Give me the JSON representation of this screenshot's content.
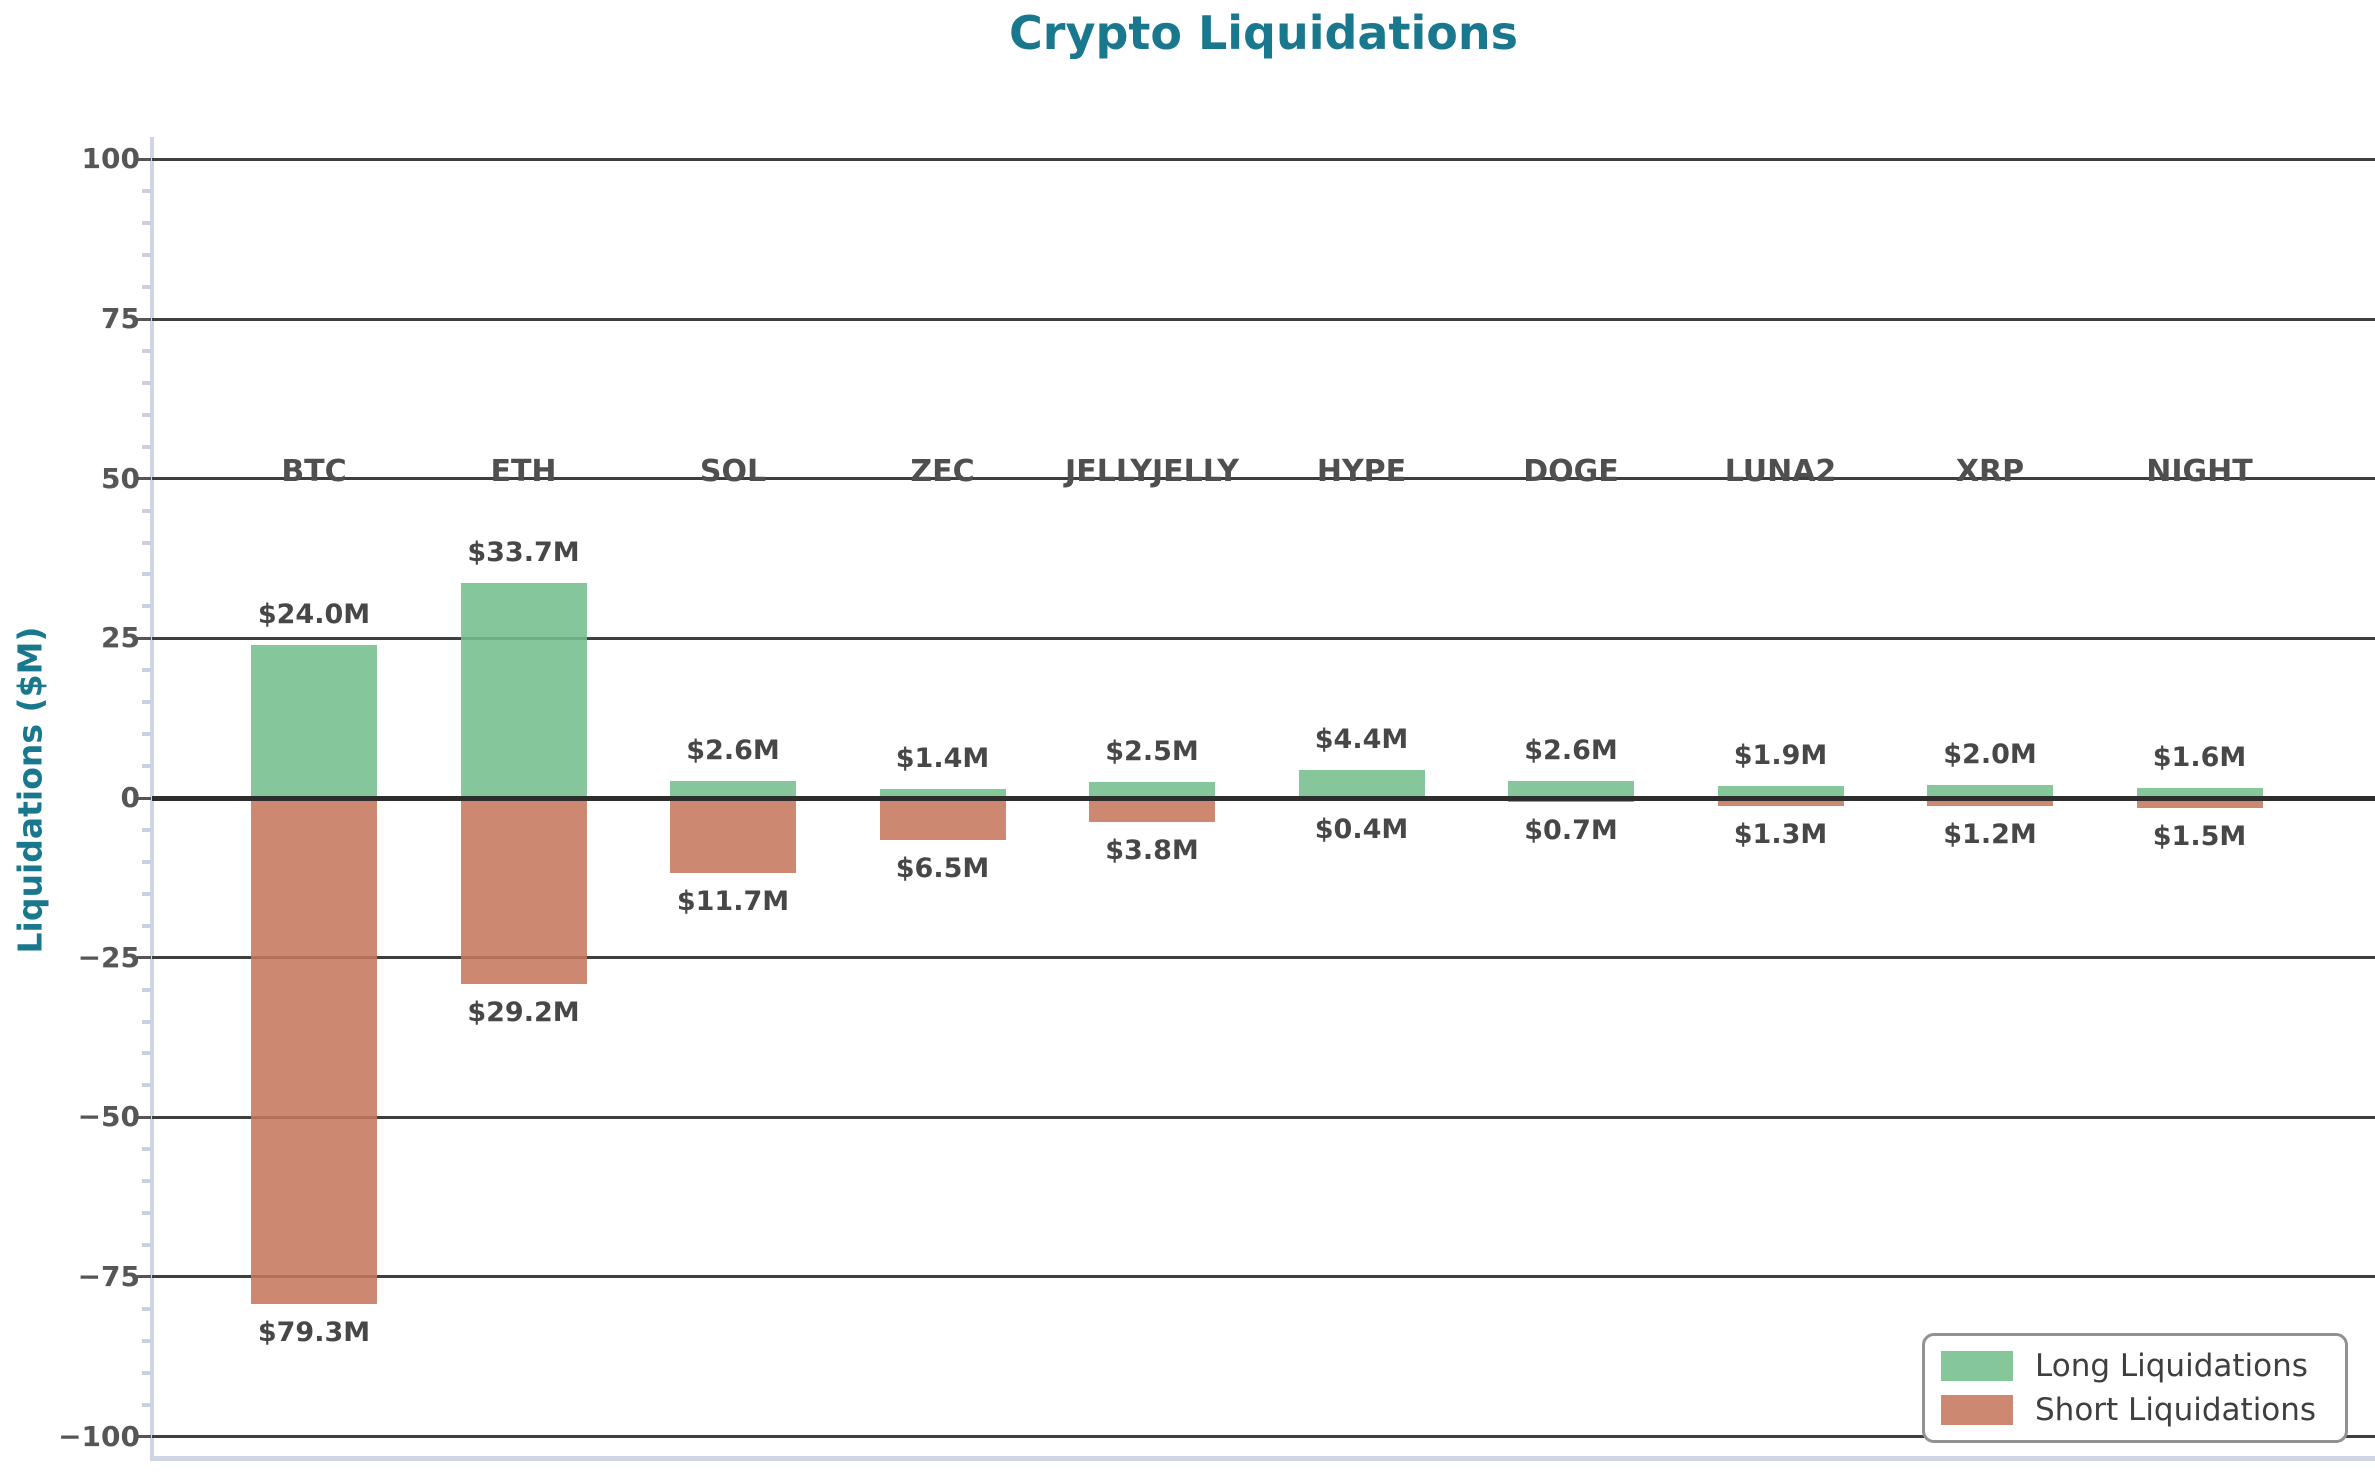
{
  "chart_data": {
    "type": "bar",
    "title": "Crypto Liquidations",
    "title_color": "#19788e",
    "ylabel": "Liquidations ($M)",
    "xlabel": "",
    "categories": [
      "BTC",
      "ETH",
      "SOL",
      "ZEC",
      "JELLYJELLY",
      "HYPE",
      "DOGE",
      "LUNA2",
      "XRP",
      "NIGHT"
    ],
    "series": [
      {
        "name": "Long Liquidations",
        "direction": "up",
        "color": "#74bf8c",
        "legend_color": "#85c79a",
        "values": [
          24.0,
          33.7,
          2.6,
          1.4,
          2.5,
          4.4,
          2.6,
          1.9,
          2.0,
          1.6
        ],
        "labels": [
          "$24.0M",
          "$33.7M",
          "$2.6M",
          "$1.4M",
          "$2.5M",
          "$4.4M",
          "$2.6M",
          "$1.9M",
          "$2.0M",
          "$1.6M"
        ]
      },
      {
        "name": "Short Liquidations",
        "direction": "down",
        "color": "#c6785f",
        "legend_color": "#cd8872",
        "values": [
          79.3,
          29.2,
          11.7,
          6.5,
          3.8,
          0.4,
          0.7,
          1.3,
          1.2,
          1.5
        ],
        "labels": [
          "$79.3M",
          "$29.2M",
          "$11.7M",
          "$6.5M",
          "$3.8M",
          "$0.4M",
          "$0.7M",
          "$1.3M",
          "$1.2M",
          "$1.5M"
        ]
      }
    ],
    "y_ticks": [
      {
        "value": 100,
        "label": "100"
      },
      {
        "value": 75,
        "label": "75"
      },
      {
        "value": 50,
        "label": "50"
      },
      {
        "value": 25,
        "label": "25"
      },
      {
        "value": 0,
        "label": "0"
      },
      {
        "value": -25,
        "label": "−25"
      },
      {
        "value": -50,
        "label": "−50"
      },
      {
        "value": -75,
        "label": "−75"
      },
      {
        "value": -100,
        "label": "−100"
      }
    ],
    "minor_tick_step": 5,
    "ylim": [
      -103.5,
      103.5
    ],
    "grid": "horizontal-major",
    "legend_position": "lower-right",
    "category_label_y": 50
  }
}
